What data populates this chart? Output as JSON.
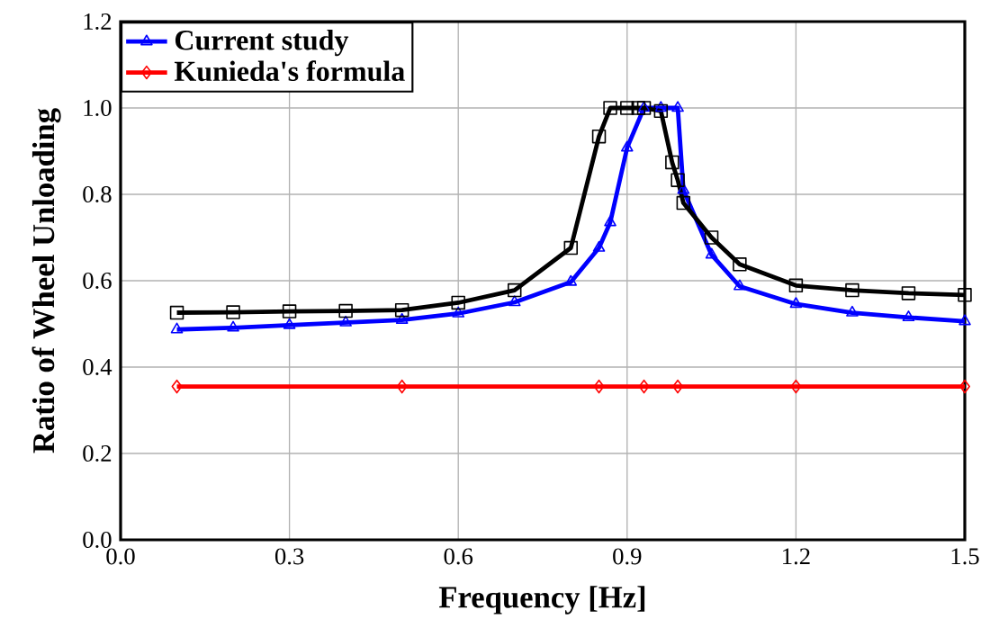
{
  "chart_data": {
    "type": "line",
    "xlabel": "Frequency [Hz]",
    "ylabel": "Ratio of Wheel Unloading",
    "xlim": [
      0,
      1.5
    ],
    "ylim": [
      0,
      1.2
    ],
    "xticks": [
      {
        "value": 0,
        "label": "0.0"
      },
      0.3,
      0.6,
      0.9,
      {
        "value": 1.2,
        "label": "1.2"
      },
      {
        "value": 1.5,
        "label": "1.5"
      }
    ],
    "yticks": [
      {
        "value": 0,
        "label": "0.0"
      },
      0.2,
      0.4,
      0.6,
      0.8,
      {
        "value": 1,
        "label": "1.0"
      },
      {
        "value": 1.2,
        "label": "1.2"
      }
    ],
    "grid": true,
    "legend": "top left",
    "line_style": "solid",
    "series": [
      {
        "name": "Current study",
        "color": "#0000ff",
        "marker": "triangle",
        "x": [
          0.1,
          0.2,
          0.3,
          0.4,
          0.5,
          0.6,
          0.7,
          0.8,
          0.85,
          0.87,
          0.9,
          0.93,
          0.96,
          0.99,
          1.0,
          1.05,
          1.1,
          1.2,
          1.3,
          1.4,
          1.5
        ],
        "values": [
          0.487,
          0.491,
          0.497,
          0.503,
          0.509,
          0.524,
          0.55,
          0.597,
          0.676,
          0.735,
          0.908,
          1.0,
          1.0,
          1.0,
          0.81,
          0.66,
          0.587,
          0.546,
          0.526,
          0.515,
          0.506
        ]
      },
      {
        "name": "Kunieda's formula",
        "color": "#ff0000",
        "marker": "diamond",
        "x": [
          0.1,
          0.5,
          0.85,
          0.93,
          0.99,
          1.2,
          1.5
        ],
        "values": [
          0.355,
          0.355,
          0.355,
          0.355,
          0.355,
          0.355,
          0.355
        ]
      },
      {
        "color": "#000000",
        "marker": "square",
        "x": [
          0.1,
          0.2,
          0.3,
          0.4,
          0.5,
          0.6,
          0.7,
          0.8,
          0.85,
          0.87,
          0.9,
          0.92,
          0.93,
          0.96,
          0.98,
          0.99,
          1.0,
          1.05,
          1.1,
          1.2,
          1.3,
          1.4,
          1.5
        ],
        "values": [
          0.526,
          0.527,
          0.529,
          0.53,
          0.532,
          0.549,
          0.578,
          0.676,
          0.934,
          1.0,
          1.0,
          1.0,
          1.0,
          0.993,
          0.874,
          0.833,
          0.78,
          0.7,
          0.638,
          0.589,
          0.578,
          0.571,
          0.567
        ]
      }
    ]
  }
}
